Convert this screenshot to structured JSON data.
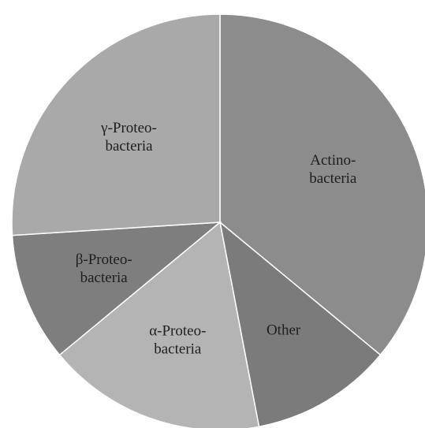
{
  "chart_data": {
    "type": "pie",
    "title": "",
    "start": "12 o'clock",
    "direction": "clockwise",
    "legend": "none",
    "slices": [
      {
        "label_lines": [
          "Actino-",
          "bacteria"
        ],
        "value": 36,
        "color": "#8c8c8c"
      },
      {
        "label_lines": [
          "Other"
        ],
        "value": 11,
        "color": "#7b7b7b"
      },
      {
        "label_lines": [
          "α-Proteo-",
          "bacteria"
        ],
        "value": 17,
        "color": "#b4b4b4"
      },
      {
        "label_lines": [
          "β-Proteo-",
          "bacteria"
        ],
        "value": 10,
        "color": "#7e7e7e"
      },
      {
        "label_lines": [
          "γ-Proteo-",
          "bacteria"
        ],
        "value": 26,
        "color": "#a9a9a9"
      }
    ]
  }
}
